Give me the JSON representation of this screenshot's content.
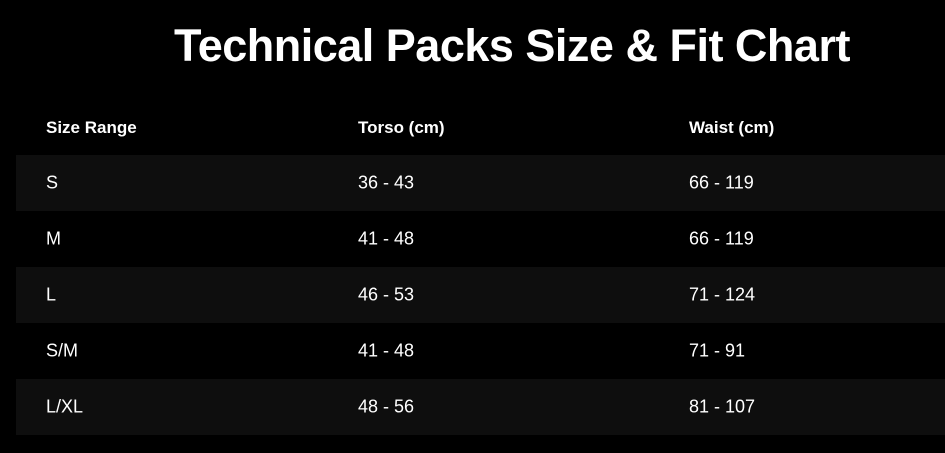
{
  "title": "Technical Packs Size & Fit Chart",
  "table": {
    "headers": [
      "Size Range",
      "Torso (cm)",
      "Waist (cm)"
    ],
    "rows": [
      [
        "S",
        "36 - 43",
        "66 - 119"
      ],
      [
        "M",
        "41 - 48",
        "66 - 119"
      ],
      [
        "L",
        "46 - 53",
        "71 - 124"
      ],
      [
        "S/M",
        "41 - 48",
        "71 - 91"
      ],
      [
        "L/XL",
        "48 - 56",
        "81 - 107"
      ]
    ]
  },
  "colors": {
    "background": "#000000",
    "stripe": "#0e0e0e",
    "text": "#ffffff"
  }
}
